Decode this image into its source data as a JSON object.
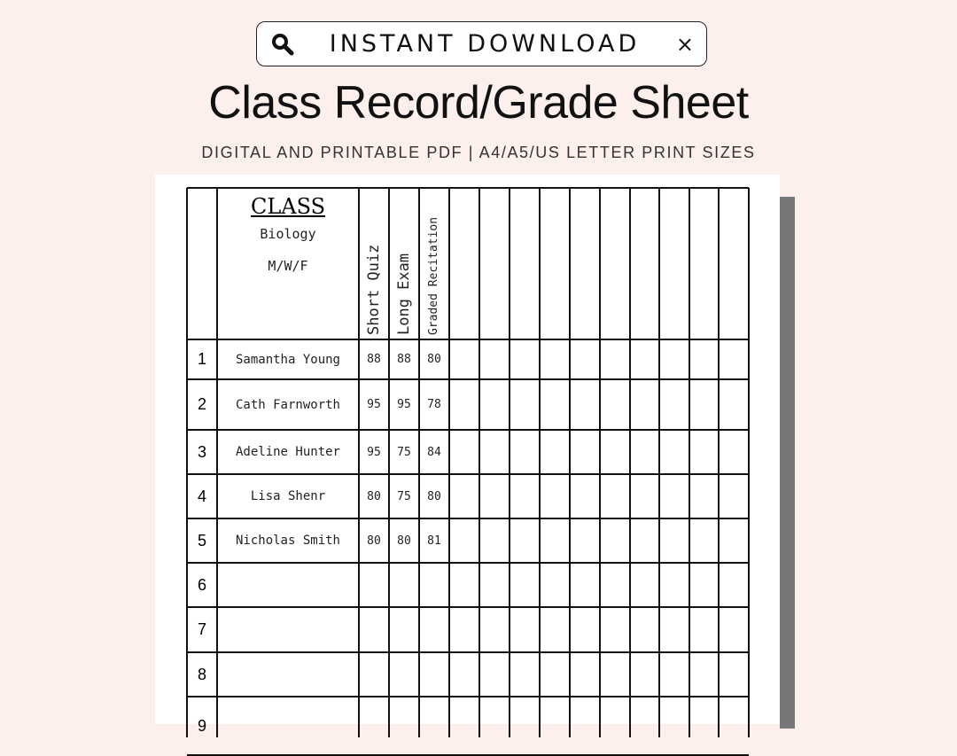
{
  "banner": {
    "label": "INSTANT DOWNLOAD",
    "icon": "search-icon",
    "close": "×"
  },
  "title": "Class Record/Grade Sheet",
  "subtitle": "DIGITAL AND PRINTABLE PDF | A4/A5/US LETTER PRINT SIZES",
  "sheet": {
    "class_label": "CLASS",
    "subject": "Biology",
    "schedule": "M/W/F",
    "columns": [
      "Short Quiz",
      "Long Exam",
      "Graded Recitation"
    ],
    "rows": [
      {
        "num": "1",
        "name": "Samantha Young",
        "scores": [
          "88",
          "88",
          "80"
        ]
      },
      {
        "num": "2",
        "name": "Cath Farnworth",
        "scores": [
          "95",
          "95",
          "78"
        ]
      },
      {
        "num": "3",
        "name": "Adeline Hunter",
        "scores": [
          "95",
          "75",
          "84"
        ]
      },
      {
        "num": "4",
        "name": "Lisa Shenr",
        "scores": [
          "80",
          "75",
          "80"
        ]
      },
      {
        "num": "5",
        "name": "Nicholas Smith",
        "scores": [
          "80",
          "80",
          "81"
        ]
      },
      {
        "num": "6",
        "name": "",
        "scores": [
          "",
          "",
          ""
        ]
      },
      {
        "num": "7",
        "name": "",
        "scores": [
          "",
          "",
          ""
        ]
      },
      {
        "num": "8",
        "name": "",
        "scores": [
          "",
          "",
          ""
        ]
      },
      {
        "num": "9",
        "name": "",
        "scores": [
          "",
          "",
          ""
        ]
      }
    ]
  },
  "colors": {
    "background": "#fcefec",
    "sheet": "#ffffff",
    "shadow": "#777777"
  }
}
